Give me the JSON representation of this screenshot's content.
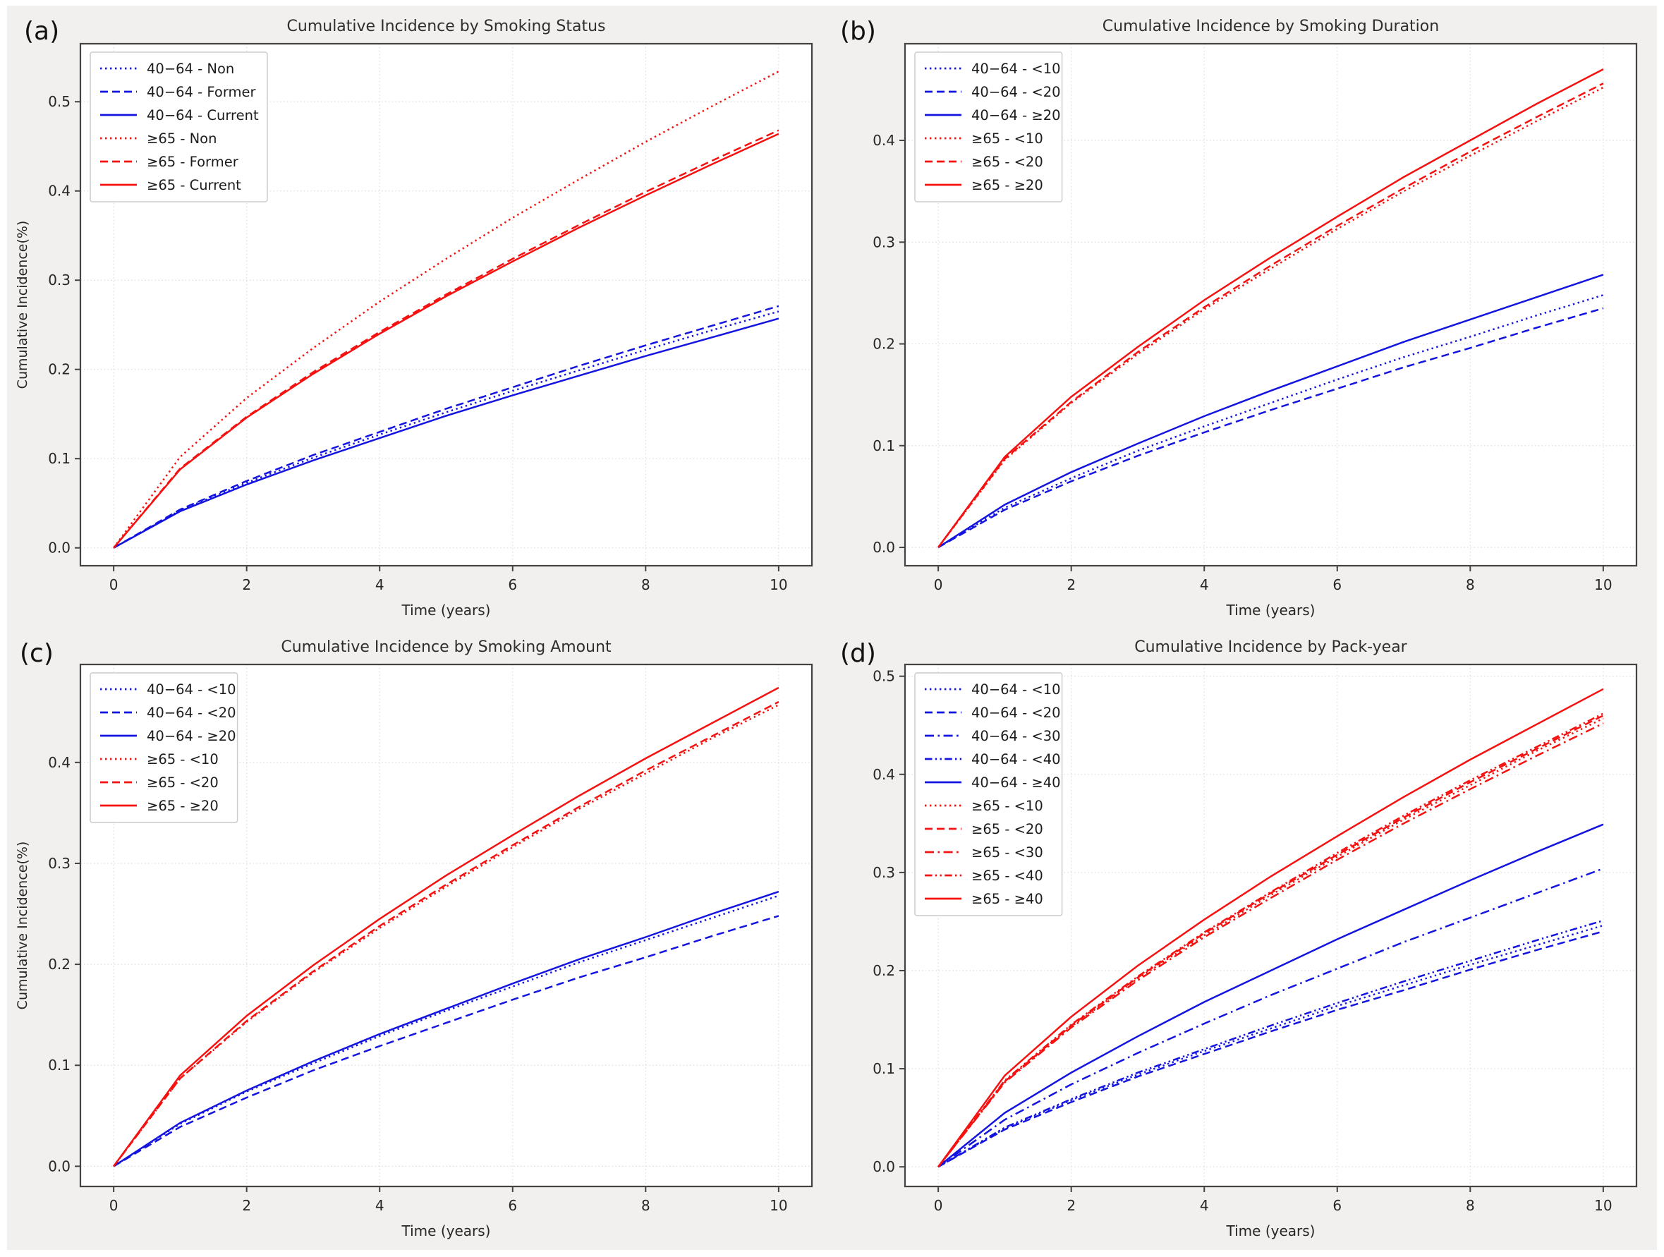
{
  "figure": {
    "background": "#f1f0ee",
    "plot_background": "#ffffff",
    "spine_color": "#434343",
    "grid_color": "#dedede",
    "text_color": "#262626",
    "blue": "#1414e0",
    "red": "#f61111"
  },
  "chart_data": [
    {
      "panel_label": "(a)",
      "type": "line",
      "title": "Cumulative Incidence by Smoking Status",
      "xlabel": "Time (years)",
      "ylabel": "Cumulative Incidence(%)",
      "xlim": [
        -0.5,
        10.5
      ],
      "ylim": [
        -0.02,
        0.565
      ],
      "xticks": [
        0,
        2,
        4,
        6,
        8,
        10
      ],
      "yticks": [
        0.0,
        0.1,
        0.2,
        0.3,
        0.4,
        0.5
      ],
      "grid": true,
      "legend_position": "upper left",
      "x": [
        0,
        1,
        2,
        3,
        4,
        5,
        6,
        7,
        8,
        9,
        10
      ],
      "series": [
        {
          "name": "40−64 - Non",
          "color": "blue",
          "style": "dotted",
          "values": [
            0,
            0.042,
            0.073,
            0.101,
            0.127,
            0.152,
            0.176,
            0.199,
            0.222,
            0.244,
            0.265
          ]
        },
        {
          "name": "40−64 - Former",
          "color": "blue",
          "style": "dashed",
          "values": [
            0,
            0.043,
            0.075,
            0.104,
            0.13,
            0.156,
            0.18,
            0.204,
            0.227,
            0.249,
            0.271
          ]
        },
        {
          "name": "40−64 - Current",
          "color": "blue",
          "style": "solid",
          "values": [
            0,
            0.041,
            0.071,
            0.098,
            0.123,
            0.148,
            0.171,
            0.193,
            0.215,
            0.236,
            0.257
          ]
        },
        {
          "name": "≥65 - Non",
          "color": "red",
          "style": "dotted",
          "values": [
            0,
            0.102,
            0.168,
            0.224,
            0.276,
            0.324,
            0.37,
            0.413,
            0.455,
            0.495,
            0.534
          ]
        },
        {
          "name": "≥65 - Former",
          "color": "red",
          "style": "dashed",
          "values": [
            0,
            0.089,
            0.147,
            0.197,
            0.242,
            0.284,
            0.324,
            0.362,
            0.399,
            0.434,
            0.468
          ]
        },
        {
          "name": "≥65 - Current",
          "color": "red",
          "style": "solid",
          "values": [
            0,
            0.088,
            0.146,
            0.195,
            0.24,
            0.282,
            0.321,
            0.359,
            0.395,
            0.43,
            0.464
          ]
        }
      ]
    },
    {
      "panel_label": "(b)",
      "type": "line",
      "title": "Cumulative Incidence by Smoking Duration",
      "xlabel": "Time (years)",
      "ylabel": null,
      "xlim": [
        -0.5,
        10.5
      ],
      "ylim": [
        -0.018,
        0.495
      ],
      "xticks": [
        0,
        2,
        4,
        6,
        8,
        10
      ],
      "yticks": [
        0.0,
        0.1,
        0.2,
        0.3,
        0.4
      ],
      "grid": true,
      "legend_position": "upper left",
      "x": [
        0,
        1,
        2,
        3,
        4,
        5,
        6,
        7,
        8,
        9,
        10
      ],
      "series": [
        {
          "name": "40−64 - <10",
          "color": "blue",
          "style": "dotted",
          "values": [
            0,
            0.039,
            0.068,
            0.095,
            0.119,
            0.142,
            0.165,
            0.187,
            0.207,
            0.228,
            0.248
          ]
        },
        {
          "name": "40−64 - <20",
          "color": "blue",
          "style": "dashed",
          "values": [
            0,
            0.037,
            0.065,
            0.09,
            0.113,
            0.135,
            0.156,
            0.177,
            0.196,
            0.216,
            0.235
          ]
        },
        {
          "name": "40−64 - ≥20",
          "color": "blue",
          "style": "solid",
          "values": [
            0,
            0.042,
            0.074,
            0.102,
            0.129,
            0.154,
            0.178,
            0.202,
            0.224,
            0.246,
            0.268
          ]
        },
        {
          "name": "≥65 - <10",
          "color": "red",
          "style": "dotted",
          "values": [
            0,
            0.086,
            0.142,
            0.19,
            0.234,
            0.274,
            0.313,
            0.35,
            0.385,
            0.419,
            0.452
          ]
        },
        {
          "name": "≥65 - <20",
          "color": "red",
          "style": "dashed",
          "values": [
            0,
            0.087,
            0.143,
            0.192,
            0.236,
            0.277,
            0.316,
            0.353,
            0.389,
            0.423,
            0.456
          ]
        },
        {
          "name": "≥65 - ≥20",
          "color": "red",
          "style": "solid",
          "values": [
            0,
            0.089,
            0.148,
            0.197,
            0.243,
            0.285,
            0.325,
            0.364,
            0.4,
            0.436,
            0.47
          ]
        }
      ]
    },
    {
      "panel_label": "(c)",
      "type": "line",
      "title": "Cumulative Incidence by Smoking Amount",
      "xlabel": "Time (years)",
      "ylabel": "Cumulative Incidence(%)",
      "xlim": [
        -0.5,
        10.5
      ],
      "ylim": [
        -0.02,
        0.497
      ],
      "xticks": [
        0,
        2,
        4,
        6,
        8,
        10
      ],
      "yticks": [
        0.0,
        0.1,
        0.2,
        0.3,
        0.4
      ],
      "grid": true,
      "legend_position": "upper left",
      "x": [
        0,
        1,
        2,
        3,
        4,
        5,
        6,
        7,
        8,
        9,
        10
      ],
      "series": [
        {
          "name": "40−64 - <10",
          "color": "blue",
          "style": "dotted",
          "values": [
            0,
            0.042,
            0.074,
            0.102,
            0.129,
            0.154,
            0.178,
            0.202,
            0.224,
            0.246,
            0.268
          ]
        },
        {
          "name": "40−64 - <20",
          "color": "blue",
          "style": "dashed",
          "values": [
            0,
            0.039,
            0.068,
            0.095,
            0.119,
            0.142,
            0.165,
            0.187,
            0.207,
            0.228,
            0.248
          ]
        },
        {
          "name": "40−64 - ≥20",
          "color": "blue",
          "style": "solid",
          "values": [
            0,
            0.043,
            0.075,
            0.104,
            0.131,
            0.156,
            0.181,
            0.205,
            0.227,
            0.25,
            0.272
          ]
        },
        {
          "name": "≥65 - <10",
          "color": "red",
          "style": "dotted",
          "values": [
            0,
            0.087,
            0.143,
            0.192,
            0.236,
            0.277,
            0.316,
            0.354,
            0.389,
            0.424,
            0.457
          ]
        },
        {
          "name": "≥65 - <20",
          "color": "red",
          "style": "dashed",
          "values": [
            0,
            0.087,
            0.144,
            0.193,
            0.238,
            0.279,
            0.318,
            0.356,
            0.392,
            0.426,
            0.46
          ]
        },
        {
          "name": "≥65 - ≥20",
          "color": "red",
          "style": "solid",
          "values": [
            0,
            0.09,
            0.149,
            0.199,
            0.245,
            0.288,
            0.328,
            0.367,
            0.404,
            0.439,
            0.474
          ]
        }
      ]
    },
    {
      "panel_label": "(d)",
      "type": "line",
      "title": "Cumulative Incidence by Pack-year",
      "xlabel": "Time (years)",
      "ylabel": null,
      "xlim": [
        -0.5,
        10.5
      ],
      "ylim": [
        -0.02,
        0.512
      ],
      "xticks": [
        0,
        2,
        4,
        6,
        8,
        10
      ],
      "yticks": [
        0.0,
        0.1,
        0.2,
        0.3,
        0.4,
        0.5
      ],
      "grid": true,
      "legend_position": "upper left",
      "x": [
        0,
        1,
        2,
        3,
        4,
        5,
        6,
        7,
        8,
        9,
        10
      ],
      "series": [
        {
          "name": "40−64 - <10",
          "color": "blue",
          "style": "dotted",
          "values": [
            0,
            0.039,
            0.068,
            0.094,
            0.118,
            0.141,
            0.164,
            0.185,
            0.206,
            0.226,
            0.246
          ]
        },
        {
          "name": "40−64 - <20",
          "color": "blue",
          "style": "dashed",
          "values": [
            0,
            0.038,
            0.066,
            0.092,
            0.115,
            0.138,
            0.16,
            0.18,
            0.201,
            0.221,
            0.24
          ]
        },
        {
          "name": "40−64 - <30",
          "color": "blue",
          "style": "dashdot",
          "values": [
            0,
            0.048,
            0.084,
            0.116,
            0.146,
            0.175,
            0.202,
            0.229,
            0.254,
            0.279,
            0.304
          ]
        },
        {
          "name": "40−64 - <40",
          "color": "blue",
          "style": "dashdotdot",
          "values": [
            0,
            0.04,
            0.069,
            0.096,
            0.12,
            0.144,
            0.167,
            0.189,
            0.21,
            0.231,
            0.251
          ]
        },
        {
          "name": "40−64 - ≥40",
          "color": "blue",
          "style": "solid",
          "values": [
            0,
            0.055,
            0.096,
            0.133,
            0.168,
            0.2,
            0.232,
            0.262,
            0.292,
            0.321,
            0.349
          ]
        },
        {
          "name": "≥65 - <10",
          "color": "red",
          "style": "dotted",
          "values": [
            0,
            0.087,
            0.143,
            0.192,
            0.236,
            0.277,
            0.316,
            0.354,
            0.389,
            0.424,
            0.457
          ]
        },
        {
          "name": "≥65 - <20",
          "color": "red",
          "style": "dashed",
          "values": [
            0,
            0.087,
            0.144,
            0.193,
            0.238,
            0.279,
            0.318,
            0.356,
            0.392,
            0.426,
            0.46
          ]
        },
        {
          "name": "≥65 - <30",
          "color": "red",
          "style": "dashdot",
          "values": [
            0,
            0.086,
            0.142,
            0.19,
            0.234,
            0.274,
            0.313,
            0.35,
            0.385,
            0.419,
            0.452
          ]
        },
        {
          "name": "≥65 - <40",
          "color": "red",
          "style": "dashdotdot",
          "values": [
            0,
            0.088,
            0.145,
            0.194,
            0.239,
            0.28,
            0.32,
            0.358,
            0.394,
            0.428,
            0.462
          ]
        },
        {
          "name": "≥65 - ≥40",
          "color": "red",
          "style": "solid",
          "values": [
            0,
            0.093,
            0.153,
            0.205,
            0.252,
            0.296,
            0.337,
            0.377,
            0.415,
            0.451,
            0.487
          ]
        }
      ]
    }
  ]
}
